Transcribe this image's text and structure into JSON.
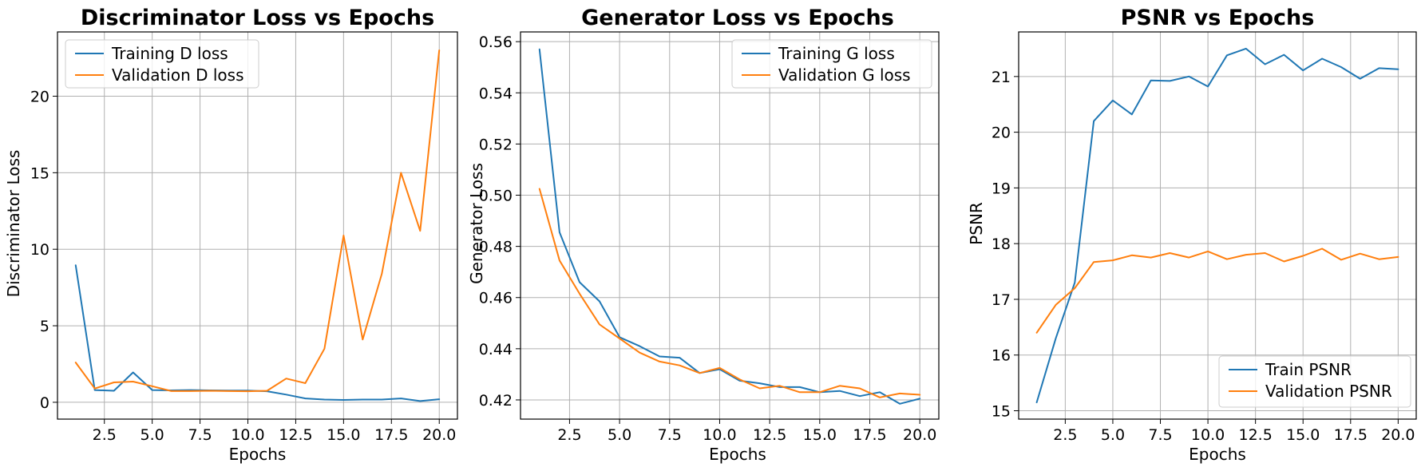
{
  "chart_data": [
    {
      "type": "line",
      "title": "Discriminator Loss vs Epochs",
      "xlabel": "Epochs",
      "ylabel": "Discriminator Loss",
      "xlim": [
        0.05,
        20.95
      ],
      "ylim": [
        -1.1,
        24.2
      ],
      "xticks": [
        2.5,
        5.0,
        7.5,
        10.0,
        12.5,
        15.0,
        17.5,
        20.0
      ],
      "xtick_labels": [
        "2.5",
        "5.0",
        "7.5",
        "10.0",
        "12.5",
        "15.0",
        "17.5",
        "20.0"
      ],
      "yticks": [
        0,
        5,
        10,
        15,
        20
      ],
      "ytick_labels": [
        "0",
        "5",
        "10",
        "15",
        "20"
      ],
      "grid": true,
      "legend_position": "upper-left",
      "x": [
        1,
        2,
        3,
        4,
        5,
        6,
        7,
        8,
        9,
        10,
        11,
        12,
        13,
        14,
        15,
        16,
        17,
        18,
        19,
        20
      ],
      "series": [
        {
          "name": "Training D loss",
          "color": "#1f77b4",
          "values": [
            8.95,
            0.8,
            0.75,
            1.95,
            0.8,
            0.78,
            0.8,
            0.78,
            0.76,
            0.76,
            0.72,
            0.5,
            0.25,
            0.18,
            0.15,
            0.18,
            0.18,
            0.25,
            0.08,
            0.2
          ]
        },
        {
          "name": "Validation D loss",
          "color": "#ff7f0e",
          "values": [
            2.6,
            0.9,
            1.3,
            1.35,
            1.05,
            0.73,
            0.73,
            0.75,
            0.73,
            0.72,
            0.75,
            1.55,
            1.25,
            3.5,
            10.9,
            4.1,
            8.4,
            15.0,
            11.2,
            23.0
          ]
        }
      ]
    },
    {
      "type": "line",
      "title": "Generator Loss vs Epochs",
      "xlabel": "Epochs",
      "ylabel": "Generator Loss",
      "xlim": [
        0.05,
        20.95
      ],
      "ylim": [
        0.4125,
        0.5638
      ],
      "xticks": [
        2.5,
        5.0,
        7.5,
        10.0,
        12.5,
        15.0,
        17.5,
        20.0
      ],
      "xtick_labels": [
        "2.5",
        "5.0",
        "7.5",
        "10.0",
        "12.5",
        "15.0",
        "17.5",
        "20.0"
      ],
      "yticks": [
        0.42,
        0.44,
        0.46,
        0.48,
        0.5,
        0.52,
        0.54,
        0.56
      ],
      "ytick_labels": [
        "0.42",
        "0.44",
        "0.46",
        "0.48",
        "0.50",
        "0.52",
        "0.54",
        "0.56"
      ],
      "grid": true,
      "legend_position": "upper-right",
      "x": [
        1,
        2,
        3,
        4,
        5,
        6,
        7,
        8,
        9,
        10,
        11,
        12,
        13,
        14,
        15,
        16,
        17,
        18,
        19,
        20
      ],
      "series": [
        {
          "name": "Training G loss",
          "color": "#1f77b4",
          "values": [
            0.557,
            0.4855,
            0.466,
            0.4585,
            0.4445,
            0.441,
            0.437,
            0.4365,
            0.4305,
            0.432,
            0.4275,
            0.4265,
            0.425,
            0.425,
            0.423,
            0.4235,
            0.4215,
            0.423,
            0.4185,
            0.4205
          ]
        },
        {
          "name": "Validation G loss",
          "color": "#ff7f0e",
          "values": [
            0.5025,
            0.4745,
            0.4615,
            0.4495,
            0.444,
            0.4385,
            0.435,
            0.4335,
            0.4305,
            0.4325,
            0.428,
            0.4245,
            0.4255,
            0.423,
            0.423,
            0.4255,
            0.4245,
            0.421,
            0.4225,
            0.422
          ]
        }
      ]
    },
    {
      "type": "line",
      "title": "PSNR vs Epochs",
      "xlabel": "Epochs",
      "ylabel": "PSNR",
      "xlim": [
        0.05,
        20.95
      ],
      "ylim": [
        14.85,
        21.8
      ],
      "xticks": [
        2.5,
        5.0,
        7.5,
        10.0,
        12.5,
        15.0,
        17.5,
        20.0
      ],
      "xtick_labels": [
        "2.5",
        "5.0",
        "7.5",
        "10.0",
        "12.5",
        "15.0",
        "17.5",
        "20.0"
      ],
      "yticks": [
        15,
        16,
        17,
        18,
        19,
        20,
        21
      ],
      "ytick_labels": [
        "15",
        "16",
        "17",
        "18",
        "19",
        "20",
        "21"
      ],
      "grid": true,
      "legend_position": "lower-right",
      "x": [
        1,
        2,
        3,
        4,
        5,
        6,
        7,
        8,
        9,
        10,
        11,
        12,
        13,
        14,
        15,
        16,
        17,
        18,
        19,
        20
      ],
      "series": [
        {
          "name": "Train PSNR",
          "color": "#1f77b4",
          "values": [
            15.15,
            16.3,
            17.3,
            20.2,
            20.57,
            20.32,
            20.93,
            20.92,
            21.0,
            20.82,
            21.38,
            21.5,
            21.22,
            21.39,
            21.11,
            21.32,
            21.17,
            20.96,
            21.15,
            21.13
          ]
        },
        {
          "name": "Validation PSNR",
          "color": "#ff7f0e",
          "values": [
            16.4,
            16.9,
            17.2,
            17.67,
            17.7,
            17.79,
            17.75,
            17.83,
            17.75,
            17.86,
            17.72,
            17.8,
            17.83,
            17.68,
            17.78,
            17.91,
            17.71,
            17.82,
            17.72,
            17.76
          ]
        }
      ]
    }
  ],
  "style": {
    "grid_color": "#b0b0b0",
    "axes_color": "#000000"
  }
}
